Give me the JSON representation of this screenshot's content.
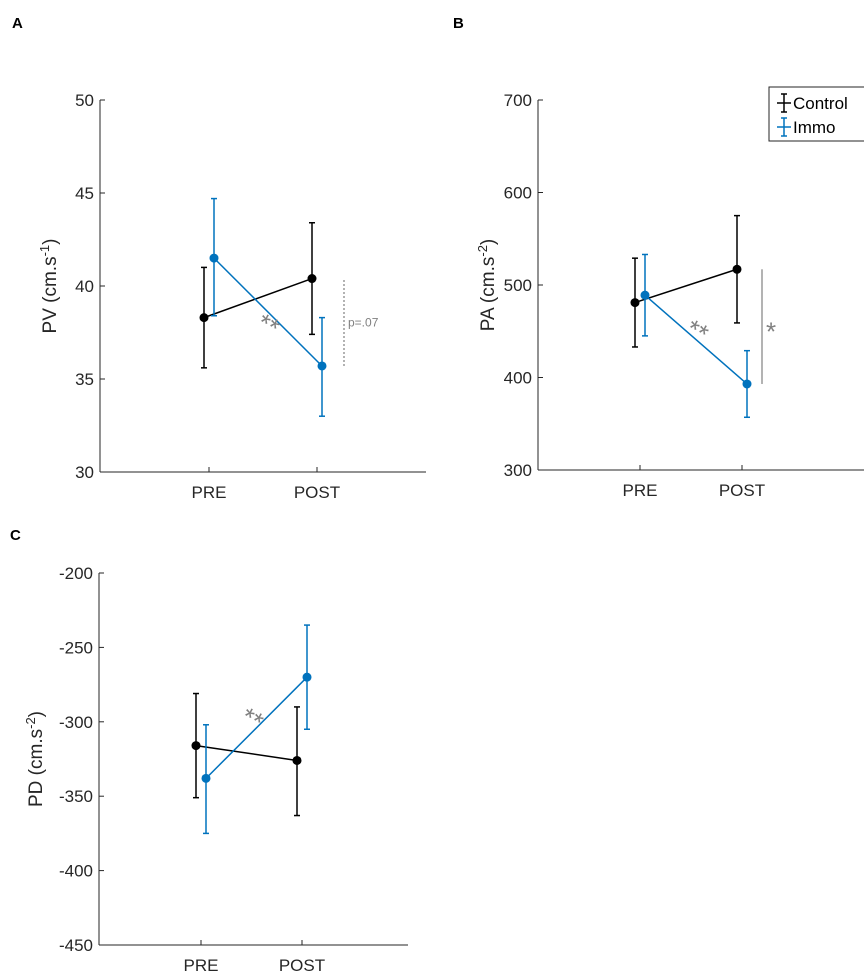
{
  "colors": {
    "control": "#000000",
    "immo": "#0072BD",
    "annotation": "#808080"
  },
  "legend": {
    "entries": [
      "Control",
      "Immo"
    ],
    "placement": "top-right"
  },
  "chart_data": [
    {
      "panel": "A",
      "type": "line",
      "ylabel": "PV (cm.s^-1)",
      "ylabel_main": "PV (cm.s",
      "ylabel_sup": "-1",
      "ylabel_end": ")",
      "categories": [
        "PRE",
        "POST"
      ],
      "ylim": [
        30,
        50
      ],
      "yticks": [
        30,
        35,
        40,
        45,
        50
      ],
      "series": [
        {
          "name": "Control",
          "values": [
            38.3,
            40.4
          ],
          "err_low": [
            35.6,
            37.4
          ],
          "err_high": [
            41.0,
            43.4
          ]
        },
        {
          "name": "Immo",
          "values": [
            41.5,
            35.7
          ],
          "err_low": [
            38.4,
            33.0
          ],
          "err_high": [
            44.7,
            38.3
          ]
        }
      ],
      "annotations": [
        {
          "text": "**",
          "kind": "within-immo"
        },
        {
          "text": "p=.07",
          "kind": "between-post",
          "from": 35.7,
          "to": 40.4,
          "dotted": true
        }
      ]
    },
    {
      "panel": "B",
      "type": "line",
      "ylabel": "PA (cm.s^-2)",
      "ylabel_main": "PA (cm.s",
      "ylabel_sup": "-2",
      "ylabel_end": ")",
      "categories": [
        "PRE",
        "POST"
      ],
      "ylim": [
        300,
        700
      ],
      "yticks": [
        300,
        400,
        500,
        600,
        700
      ],
      "series": [
        {
          "name": "Control",
          "values": [
            481,
            517
          ],
          "err_low": [
            433,
            459
          ],
          "err_high": [
            529,
            575
          ]
        },
        {
          "name": "Immo",
          "values": [
            489,
            393
          ],
          "err_low": [
            445,
            357
          ],
          "err_high": [
            533,
            429
          ]
        }
      ],
      "annotations": [
        {
          "text": "**",
          "kind": "within-immo"
        },
        {
          "text": "*",
          "kind": "between-post",
          "from": 393,
          "to": 517,
          "dotted": false
        }
      ]
    },
    {
      "panel": "C",
      "type": "line",
      "ylabel": "PD (cm.s^-2)",
      "ylabel_main": "PD (cm.s",
      "ylabel_sup": "-2",
      "ylabel_end": ")",
      "categories": [
        "PRE",
        "POST"
      ],
      "ylim": [
        -450,
        -200
      ],
      "yticks": [
        -450,
        -400,
        -350,
        -300,
        -250,
        -200
      ],
      "series": [
        {
          "name": "Control",
          "values": [
            -316,
            -326
          ],
          "err_low": [
            -351,
            -363
          ],
          "err_high": [
            -281,
            -290
          ]
        },
        {
          "name": "Immo",
          "values": [
            -338,
            -270
          ],
          "err_low": [
            -375,
            -305
          ],
          "err_high": [
            -302,
            -235
          ]
        }
      ],
      "annotations": [
        {
          "text": "**",
          "kind": "within-immo"
        }
      ]
    }
  ]
}
